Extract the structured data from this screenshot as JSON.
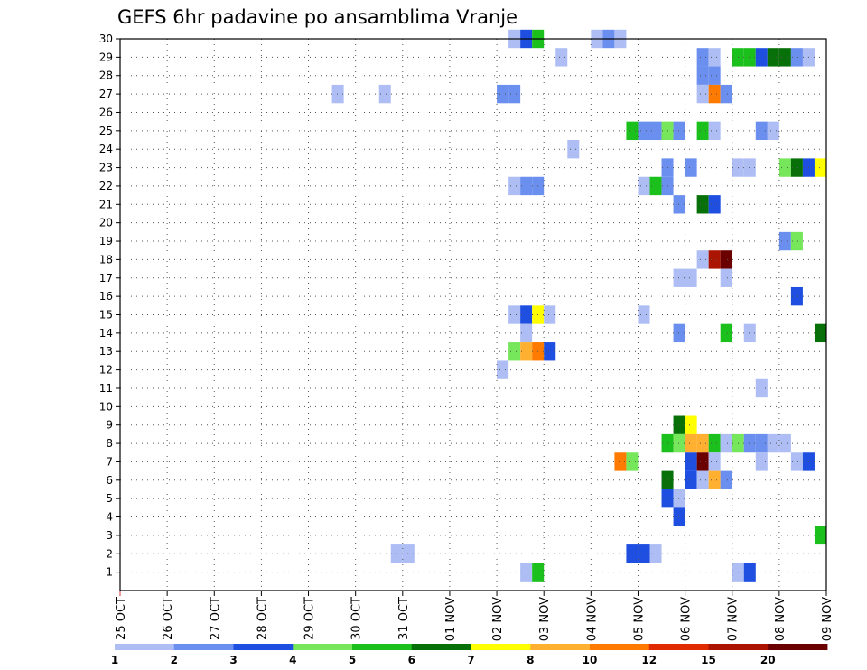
{
  "chart_data": {
    "type": "heatmap",
    "title": "GEFS 6hr padavine po ansamblima Vranje",
    "x_tick_labels": [
      "25 OCT",
      "26 OCT",
      "27 OCT",
      "28 OCT",
      "29 OCT",
      "30 OCT",
      "31 OCT",
      "01 NOV",
      "02 NOV",
      "03 NOV",
      "04 NOV",
      "05 NOV",
      "06 NOV",
      "07 NOV",
      "08 NOV",
      "09 NOV"
    ],
    "y_tick_labels": [
      "1",
      "2",
      "3",
      "4",
      "5",
      "6",
      "7",
      "8",
      "9",
      "10",
      "11",
      "12",
      "13",
      "14",
      "15",
      "16",
      "17",
      "18",
      "19",
      "20",
      "21",
      "22",
      "23",
      "24",
      "25",
      "26",
      "27",
      "28",
      "29",
      "30"
    ],
    "xlim_days": [
      0,
      15
    ],
    "ylim_members": [
      0,
      30
    ],
    "grid": true,
    "time_step_hours": 6,
    "legend": {
      "position": "bottom",
      "labels": [
        "1",
        "2",
        "3",
        "4",
        "5",
        "6",
        "7",
        "8",
        "10",
        "12",
        "15",
        "20"
      ],
      "colors": [
        "#aebef5",
        "#6b8fef",
        "#1e4fe0",
        "#76e65a",
        "#1cc01c",
        "#087008",
        "#ffff00",
        "#ffb030",
        "#ff7a00",
        "#e02a00",
        "#aa1400",
        "#6a0000"
      ]
    },
    "cells": [
      {
        "member": 30,
        "day": 8.25,
        "level": 1
      },
      {
        "member": 30,
        "day": 8.5,
        "level": 3
      },
      {
        "member": 30,
        "day": 8.75,
        "level": 5
      },
      {
        "member": 30,
        "day": 10.0,
        "level": 1
      },
      {
        "member": 30,
        "day": 10.25,
        "level": 2
      },
      {
        "member": 30,
        "day": 10.5,
        "level": 1
      },
      {
        "member": 29,
        "day": 9.25,
        "level": 1
      },
      {
        "member": 29,
        "day": 12.25,
        "level": 2
      },
      {
        "member": 29,
        "day": 12.5,
        "level": 1
      },
      {
        "member": 29,
        "day": 13.0,
        "level": 5
      },
      {
        "member": 29,
        "day": 13.25,
        "level": 5
      },
      {
        "member": 29,
        "day": 13.5,
        "level": 3
      },
      {
        "member": 29,
        "day": 13.75,
        "level": 6
      },
      {
        "member": 29,
        "day": 14.0,
        "level": 6
      },
      {
        "member": 29,
        "day": 14.25,
        "level": 2
      },
      {
        "member": 29,
        "day": 14.5,
        "level": 1
      },
      {
        "member": 28,
        "day": 12.25,
        "level": 2
      },
      {
        "member": 28,
        "day": 12.5,
        "level": 2
      },
      {
        "member": 27,
        "day": 4.5,
        "level": 1
      },
      {
        "member": 27,
        "day": 5.5,
        "level": 1
      },
      {
        "member": 27,
        "day": 8.0,
        "level": 2
      },
      {
        "member": 27,
        "day": 8.25,
        "level": 2
      },
      {
        "member": 27,
        "day": 12.25,
        "level": 1
      },
      {
        "member": 27,
        "day": 12.5,
        "level": 9
      },
      {
        "member": 27,
        "day": 12.75,
        "level": 2
      },
      {
        "member": 25,
        "day": 10.75,
        "level": 5
      },
      {
        "member": 25,
        "day": 11.0,
        "level": 2
      },
      {
        "member": 25,
        "day": 11.25,
        "level": 2
      },
      {
        "member": 25,
        "day": 11.5,
        "level": 4
      },
      {
        "member": 25,
        "day": 11.75,
        "level": 2
      },
      {
        "member": 25,
        "day": 12.25,
        "level": 5
      },
      {
        "member": 25,
        "day": 12.5,
        "level": 1
      },
      {
        "member": 25,
        "day": 13.5,
        "level": 2
      },
      {
        "member": 25,
        "day": 13.75,
        "level": 1
      },
      {
        "member": 24,
        "day": 9.5,
        "level": 1
      },
      {
        "member": 23,
        "day": 11.5,
        "level": 2
      },
      {
        "member": 23,
        "day": 12.0,
        "level": 2
      },
      {
        "member": 23,
        "day": 13.0,
        "level": 1
      },
      {
        "member": 23,
        "day": 13.25,
        "level": 1
      },
      {
        "member": 23,
        "day": 14.0,
        "level": 4
      },
      {
        "member": 23,
        "day": 14.25,
        "level": 6
      },
      {
        "member": 23,
        "day": 14.5,
        "level": 3
      },
      {
        "member": 23,
        "day": 14.75,
        "level": 7
      },
      {
        "member": 22,
        "day": 8.25,
        "level": 1
      },
      {
        "member": 22,
        "day": 8.5,
        "level": 2
      },
      {
        "member": 22,
        "day": 8.75,
        "level": 2
      },
      {
        "member": 22,
        "day": 11.0,
        "level": 1
      },
      {
        "member": 22,
        "day": 11.25,
        "level": 5
      },
      {
        "member": 22,
        "day": 11.5,
        "level": 2
      },
      {
        "member": 21,
        "day": 11.75,
        "level": 2
      },
      {
        "member": 21,
        "day": 12.25,
        "level": 6
      },
      {
        "member": 21,
        "day": 12.5,
        "level": 3
      },
      {
        "member": 19,
        "day": 14.0,
        "level": 2
      },
      {
        "member": 19,
        "day": 14.25,
        "level": 4
      },
      {
        "member": 18,
        "day": 12.25,
        "level": 1
      },
      {
        "member": 18,
        "day": 12.5,
        "level": 11
      },
      {
        "member": 18,
        "day": 12.75,
        "level": 12
      },
      {
        "member": 17,
        "day": 11.75,
        "level": 1
      },
      {
        "member": 17,
        "day": 12.0,
        "level": 1
      },
      {
        "member": 17,
        "day": 12.75,
        "level": 1
      },
      {
        "member": 16,
        "day": 14.25,
        "level": 3
      },
      {
        "member": 15,
        "day": 8.25,
        "level": 1
      },
      {
        "member": 15,
        "day": 8.5,
        "level": 3
      },
      {
        "member": 15,
        "day": 8.75,
        "level": 7
      },
      {
        "member": 15,
        "day": 9.0,
        "level": 1
      },
      {
        "member": 15,
        "day": 11.0,
        "level": 1
      },
      {
        "member": 14,
        "day": 8.5,
        "level": 1
      },
      {
        "member": 14,
        "day": 11.75,
        "level": 2
      },
      {
        "member": 14,
        "day": 12.75,
        "level": 5
      },
      {
        "member": 14,
        "day": 13.25,
        "level": 1
      },
      {
        "member": 14,
        "day": 14.75,
        "level": 6
      },
      {
        "member": 13,
        "day": 8.25,
        "level": 4
      },
      {
        "member": 13,
        "day": 8.5,
        "level": 8
      },
      {
        "member": 13,
        "day": 8.75,
        "level": 9
      },
      {
        "member": 13,
        "day": 9.0,
        "level": 3
      },
      {
        "member": 12,
        "day": 8.0,
        "level": 1
      },
      {
        "member": 11,
        "day": 13.5,
        "level": 1
      },
      {
        "member": 9,
        "day": 11.75,
        "level": 6
      },
      {
        "member": 9,
        "day": 12.0,
        "level": 7
      },
      {
        "member": 8,
        "day": 11.5,
        "level": 5
      },
      {
        "member": 8,
        "day": 11.75,
        "level": 4
      },
      {
        "member": 8,
        "day": 12.0,
        "level": 8
      },
      {
        "member": 8,
        "day": 12.25,
        "level": 8
      },
      {
        "member": 8,
        "day": 12.5,
        "level": 5
      },
      {
        "member": 8,
        "day": 12.75,
        "level": 1
      },
      {
        "member": 8,
        "day": 13.0,
        "level": 4
      },
      {
        "member": 8,
        "day": 13.25,
        "level": 2
      },
      {
        "member": 8,
        "day": 13.5,
        "level": 2
      },
      {
        "member": 8,
        "day": 13.75,
        "level": 1
      },
      {
        "member": 8,
        "day": 14.0,
        "level": 1
      },
      {
        "member": 7,
        "day": 10.5,
        "level": 9
      },
      {
        "member": 7,
        "day": 10.75,
        "level": 4
      },
      {
        "member": 7,
        "day": 12.0,
        "level": 3
      },
      {
        "member": 7,
        "day": 12.25,
        "level": 12
      },
      {
        "member": 7,
        "day": 12.5,
        "level": 1
      },
      {
        "member": 7,
        "day": 13.5,
        "level": 1
      },
      {
        "member": 7,
        "day": 14.25,
        "level": 1
      },
      {
        "member": 7,
        "day": 14.5,
        "level": 3
      },
      {
        "member": 6,
        "day": 11.5,
        "level": 6
      },
      {
        "member": 6,
        "day": 12.0,
        "level": 3
      },
      {
        "member": 6,
        "day": 12.25,
        "level": 1
      },
      {
        "member": 6,
        "day": 12.5,
        "level": 8
      },
      {
        "member": 6,
        "day": 12.75,
        "level": 2
      },
      {
        "member": 5,
        "day": 11.5,
        "level": 3
      },
      {
        "member": 5,
        "day": 11.75,
        "level": 1
      },
      {
        "member": 4,
        "day": 11.75,
        "level": 3
      },
      {
        "member": 3,
        "day": 14.75,
        "level": 5
      },
      {
        "member": 2,
        "day": 5.75,
        "level": 1
      },
      {
        "member": 2,
        "day": 6.0,
        "level": 1
      },
      {
        "member": 2,
        "day": 10.75,
        "level": 3
      },
      {
        "member": 2,
        "day": 11.0,
        "level": 3
      },
      {
        "member": 2,
        "day": 11.25,
        "level": 1
      },
      {
        "member": 1,
        "day": 8.5,
        "level": 1
      },
      {
        "member": 1,
        "day": 8.75,
        "level": 5
      },
      {
        "member": 1,
        "day": 13.0,
        "level": 1
      },
      {
        "member": 1,
        "day": 13.25,
        "level": 3
      }
    ]
  }
}
